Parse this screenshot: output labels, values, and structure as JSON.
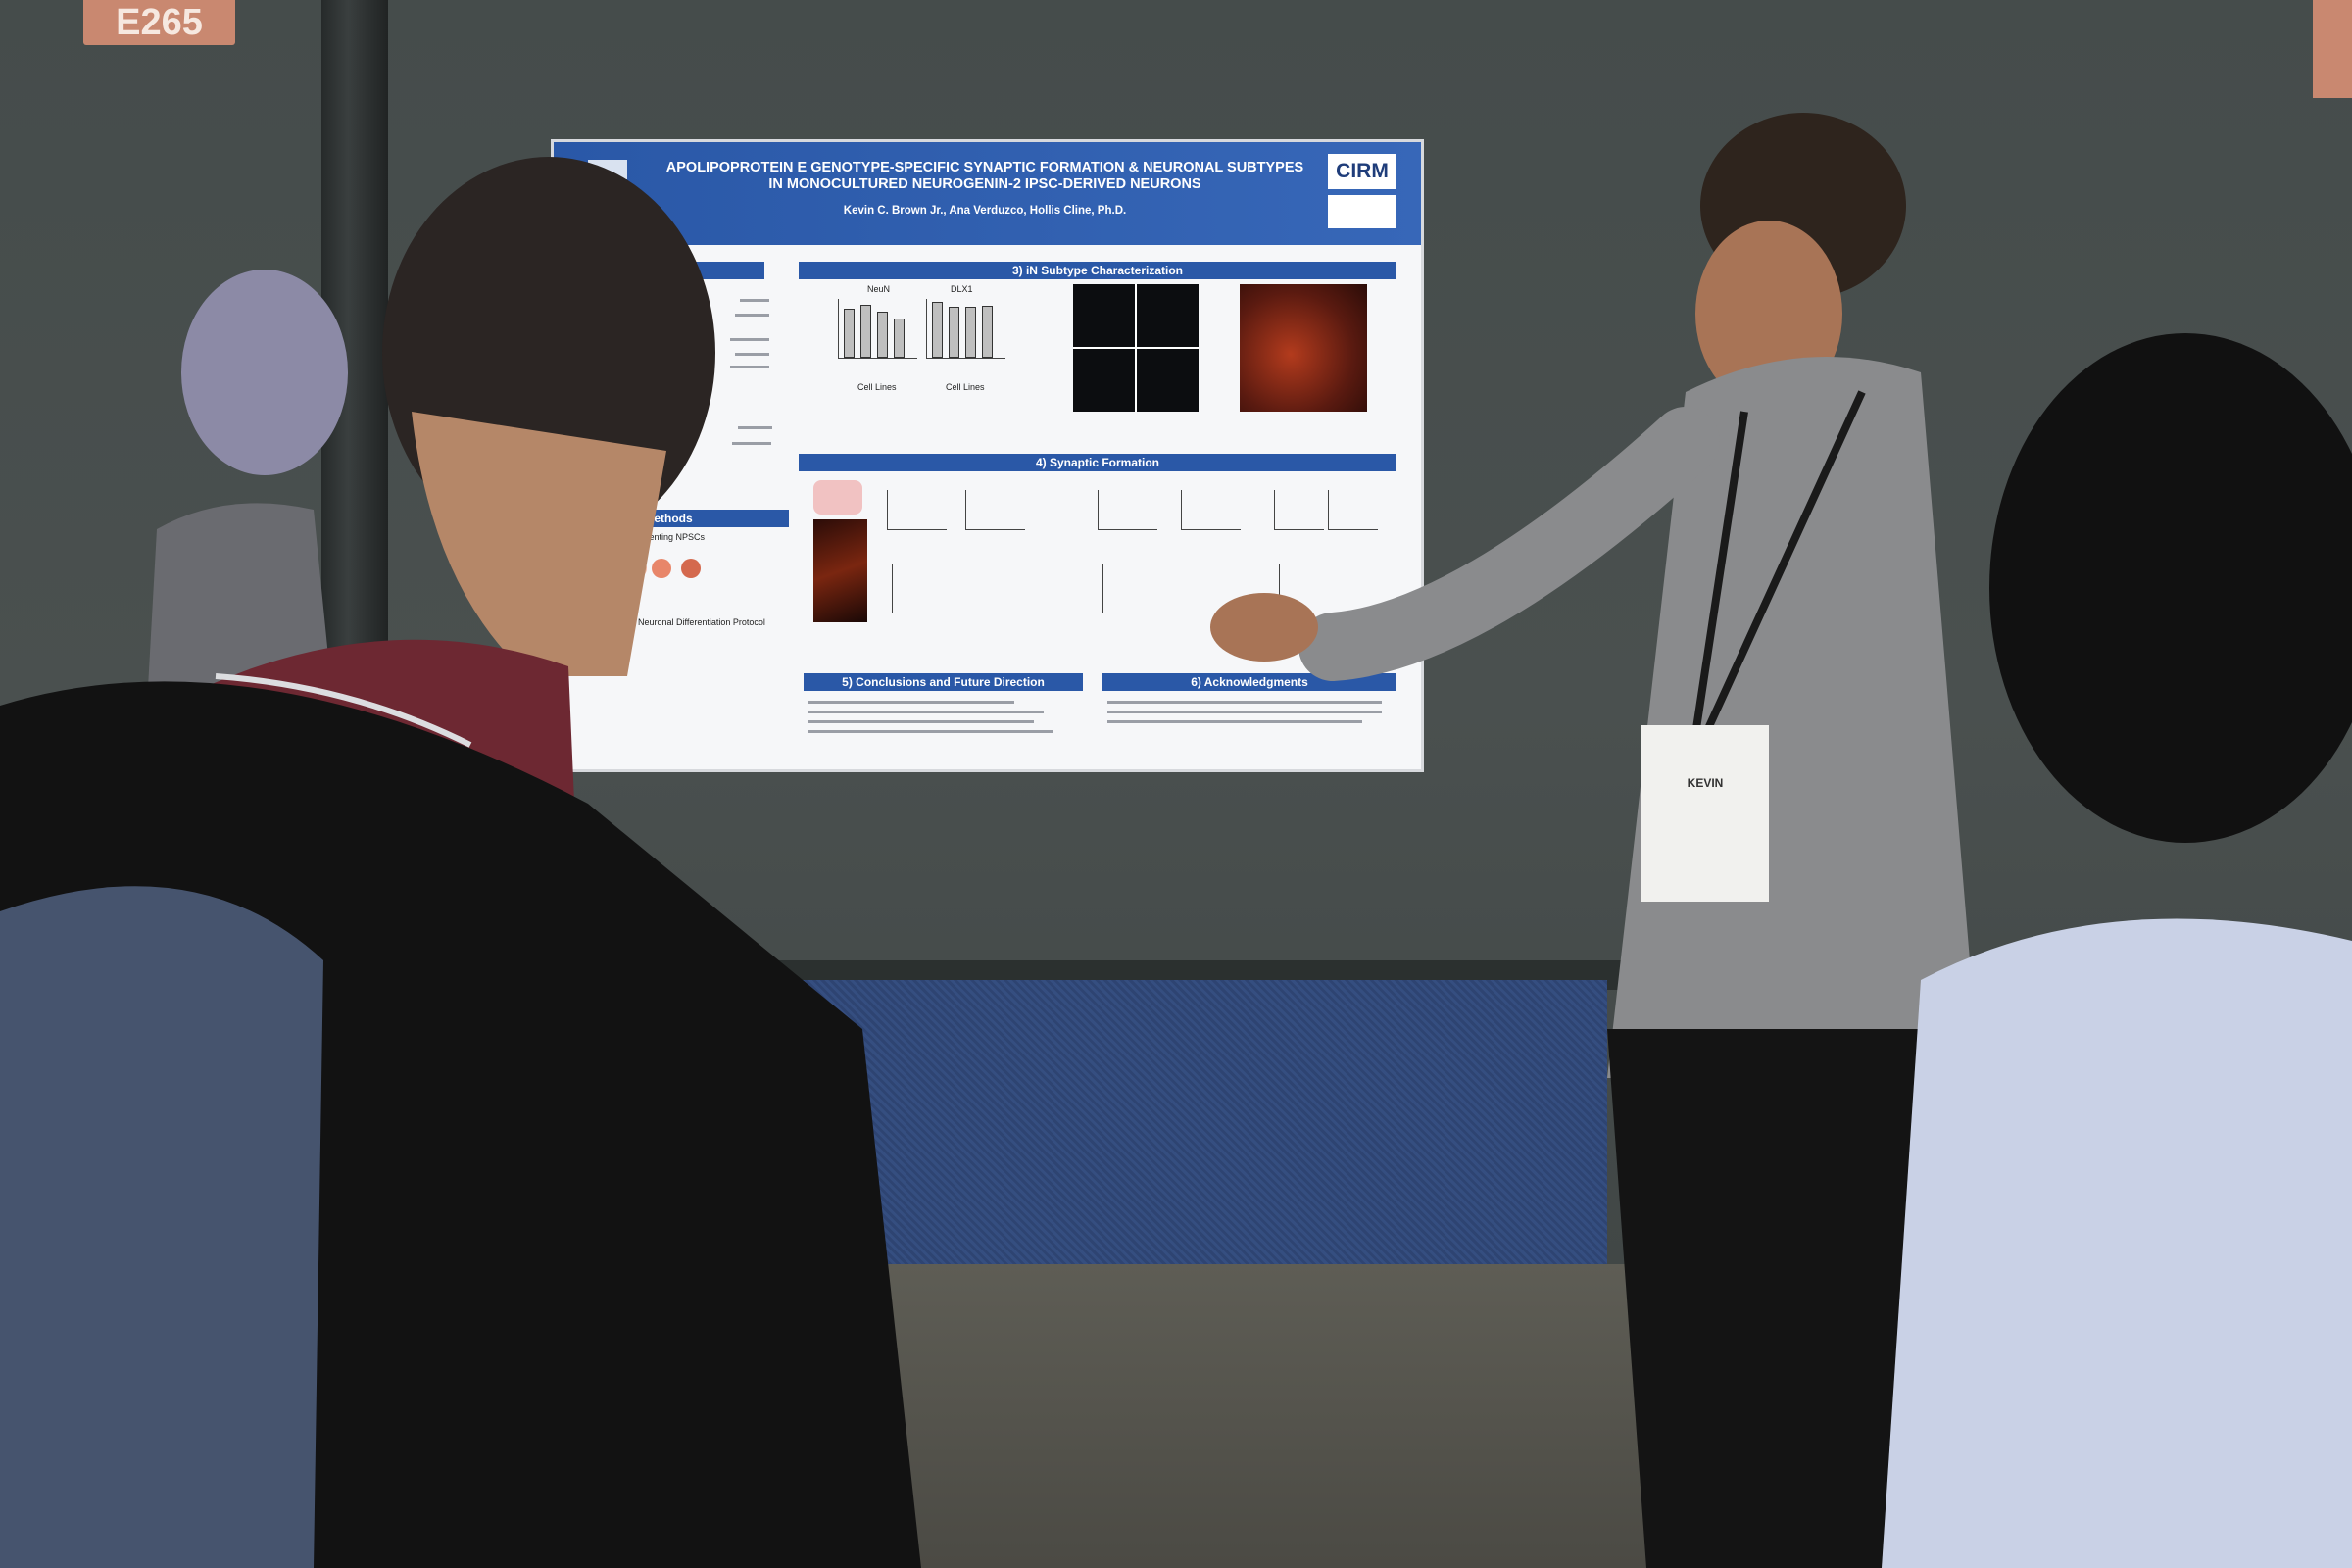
{
  "booth": {
    "number": "E265"
  },
  "poster": {
    "title_line1": "APOLIPOPROTEIN E GENOTYPE-SPECIFIC SYNAPTIC FORMATION & NEURONAL SUBTYPES",
    "title_line2": "IN MONOCULTURED NEUROGENIN-2 IPSC-DERIVED NEURONS",
    "authors": "Kevin C. Brown Jr., Ana Verduzco, Hollis Cline, Ph.D.",
    "logo": "CIRM",
    "sections": {
      "s3": "3) iN Subtype Characterization",
      "s4": "4) Synaptic Formation",
      "methods": ") Methods",
      "s5": "5) Conclusions and Future Direction",
      "s6": "6) Acknowledgments"
    },
    "chart_labels": {
      "neun": "NeuN",
      "dlx1": "DLX1",
      "xlabel": "Cell Lines"
    },
    "methods_text": {
      "npsc": "umenting NPSCs",
      "protocol": "Rapid Neuronal Differentiation Protocol"
    }
  },
  "badge": {
    "name": "KEVIN"
  },
  "colors": {
    "poster_blue": "#2a58a7",
    "wall": "#4a504f",
    "carpet": "#354e80",
    "sign": "#c98870"
  }
}
